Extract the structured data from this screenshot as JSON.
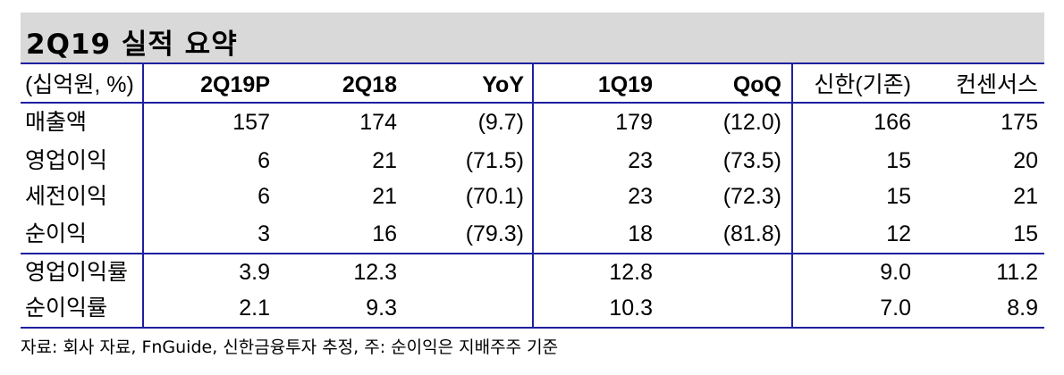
{
  "title": "2Q19 실적 요약",
  "header": {
    "unit": "(십억원, %)",
    "cols": [
      "2Q19P",
      "2Q18",
      "YoY",
      "1Q19",
      "QoQ",
      "신한(기존)",
      "컨센서스"
    ]
  },
  "rows": [
    {
      "label": "매출액",
      "values": [
        "157",
        "174",
        "(9.7)",
        "179",
        "(12.0)",
        "166",
        "175"
      ]
    },
    {
      "label": "영업이익",
      "values": [
        "6",
        "21",
        "(71.5)",
        "23",
        "(73.5)",
        "15",
        "20"
      ]
    },
    {
      "label": "세전이익",
      "values": [
        "6",
        "21",
        "(70.1)",
        "23",
        "(72.3)",
        "15",
        "21"
      ]
    },
    {
      "label": "순이익",
      "values": [
        "3",
        "16",
        "(79.3)",
        "18",
        "(81.8)",
        "12",
        "15"
      ]
    },
    {
      "label": "영업이익률",
      "values": [
        "3.9",
        "12.3",
        "",
        "12.8",
        "",
        "9.0",
        "11.2"
      ]
    },
    {
      "label": "순이익률",
      "values": [
        "2.1",
        "9.3",
        "",
        "10.3",
        "",
        "7.0",
        "8.9"
      ]
    }
  ],
  "source": "자료: 회사 자료, FnGuide, 신한금융투자 추정, 주: 순이익은 지배주주 기준",
  "colors": {
    "rule": "#1f1fa0",
    "title_bg": "#d9d9d9"
  }
}
